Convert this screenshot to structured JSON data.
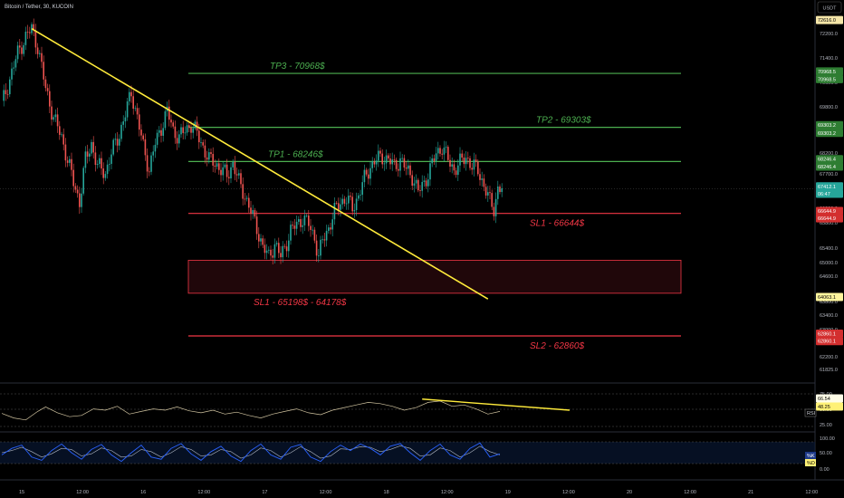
{
  "header": {
    "title": "Bitcoin / Tether, 30, KUCOIN",
    "currency_button": "USDT"
  },
  "colors": {
    "background": "#000000",
    "candle_up": "#26a69a",
    "candle_down": "#ef5350",
    "tp_line": "#4caf50",
    "sl_line": "#f23645",
    "trend_line": "#ffeb3b",
    "rsi_line": "#d1c4a0",
    "stoch_k": "#2962ff",
    "stoch_d": "#b0b7c4",
    "grid": "#3a3e4a"
  },
  "chart_data": {
    "type": "candlestick",
    "symbol": "Bitcoin / Tether",
    "interval": "30",
    "exchange": "KUCOIN",
    "x_ticks": [
      "15",
      "12:00",
      "16",
      "12:00",
      "17",
      "12:00",
      "18",
      "12:00",
      "19",
      "12:00",
      "20",
      "12:00",
      "21",
      "12:00"
    ],
    "y_ticks": [
      "72200.0",
      "71400.0",
      "70600.0",
      "69800.0",
      "69000.0",
      "68200.0",
      "67700.0",
      "66200.0",
      "65800.0",
      "65400.0",
      "65000.0",
      "64600.0",
      "63800.0",
      "63400.0",
      "63000.0",
      "62600.0",
      "62200.0",
      "61825.0"
    ],
    "ylim": [
      61825,
      72616
    ],
    "close_path": [
      [
        0,
        70000
      ],
      [
        4,
        70800
      ],
      [
        8,
        71600
      ],
      [
        12,
        72100
      ],
      [
        15,
        72350
      ],
      [
        18,
        71800
      ],
      [
        22,
        70500
      ],
      [
        26,
        69600
      ],
      [
        30,
        69000
      ],
      [
        33,
        68300
      ],
      [
        36,
        67600
      ],
      [
        39,
        67000
      ],
      [
        42,
        68300
      ],
      [
        45,
        68800
      ],
      [
        48,
        68100
      ],
      [
        52,
        67900
      ],
      [
        55,
        68500
      ],
      [
        59,
        69100
      ],
      [
        62,
        69700
      ],
      [
        65,
        70400
      ],
      [
        68,
        69600
      ],
      [
        71,
        68700
      ],
      [
        74,
        68000
      ],
      [
        77,
        68800
      ],
      [
        80,
        69300
      ],
      [
        83,
        69800
      ],
      [
        86,
        69200
      ],
      [
        89,
        69000
      ],
      [
        92,
        69200
      ],
      [
        95,
        69400
      ],
      [
        98,
        69100
      ],
      [
        101,
        68700
      ],
      [
        104,
        68300
      ],
      [
        107,
        68200
      ],
      [
        110,
        68000
      ],
      [
        113,
        67800
      ],
      [
        116,
        68200
      ],
      [
        119,
        67600
      ],
      [
        122,
        67200
      ],
      [
        125,
        66700
      ],
      [
        128,
        66200
      ],
      [
        131,
        65600
      ],
      [
        134,
        65300
      ],
      [
        137,
        65700
      ],
      [
        140,
        65300
      ],
      [
        142,
        65600
      ],
      [
        145,
        66100
      ],
      [
        148,
        66300
      ],
      [
        151,
        66500
      ],
      [
        154,
        66300
      ],
      [
        157,
        65900
      ],
      [
        159,
        65300
      ],
      [
        161,
        65800
      ],
      [
        164,
        66200
      ],
      [
        167,
        66700
      ],
      [
        170,
        67000
      ],
      [
        173,
        67100
      ],
      [
        176,
        66800
      ],
      [
        179,
        67200
      ],
      [
        182,
        67700
      ],
      [
        185,
        68100
      ],
      [
        188,
        68300
      ],
      [
        191,
        68400
      ],
      [
        194,
        68300
      ],
      [
        197,
        68100
      ],
      [
        200,
        68300
      ],
      [
        203,
        68000
      ],
      [
        206,
        67800
      ],
      [
        209,
        67300
      ],
      [
        212,
        67600
      ],
      [
        215,
        68000
      ],
      [
        218,
        68500
      ],
      [
        221,
        68700
      ],
      [
        224,
        68300
      ],
      [
        227,
        68000
      ],
      [
        230,
        68200
      ],
      [
        233,
        68400
      ],
      [
        236,
        68100
      ],
      [
        239,
        68000
      ],
      [
        242,
        67500
      ],
      [
        245,
        67000
      ],
      [
        247,
        66800
      ],
      [
        249,
        67400
      ],
      [
        251,
        67400
      ]
    ],
    "annotations": [
      {
        "label": "TP3 - 70968$",
        "price": 70968,
        "kind": "take-profit"
      },
      {
        "label": "TP2 - 69303$",
        "price": 69303,
        "kind": "take-profit"
      },
      {
        "label": "TP1 - 68246$",
        "price": 68246,
        "kind": "take-profit"
      },
      {
        "label": "SL1 - 66644$",
        "price": 66644,
        "kind": "stop-loss"
      },
      {
        "label": "SL1 - 65198$ - 64178$",
        "price_range": [
          64178,
          65198
        ],
        "kind": "stop-loss-zone"
      },
      {
        "label": "SL2 - 62860$",
        "price": 62860,
        "kind": "stop-loss"
      }
    ],
    "trendline": {
      "from": [
        15,
        72350
      ],
      "to": [
        244,
        64000
      ]
    },
    "price_tags": [
      {
        "text": "72616.0",
        "price": 72616,
        "style": "current-high"
      },
      {
        "text": "70968.5",
        "price": 71030,
        "style": "tp"
      },
      {
        "text": "70968.5",
        "price": 70790,
        "style": "tp"
      },
      {
        "text": "69303.2",
        "price": 69370,
        "style": "tp"
      },
      {
        "text": "69303.2",
        "price": 69130,
        "style": "tp"
      },
      {
        "text": "68246.4",
        "price": 68320,
        "style": "tp"
      },
      {
        "text": "68246.4",
        "price": 68090,
        "style": "tp"
      },
      {
        "text": "67412.1",
        "price": 67480,
        "style": "last"
      },
      {
        "text": "06:47",
        "price": 67250,
        "style": "last"
      },
      {
        "text": "66644.9",
        "price": 66720,
        "style": "sl"
      },
      {
        "text": "66644.9",
        "price": 66490,
        "style": "sl"
      },
      {
        "text": "64063.1",
        "price": 64063,
        "style": "marker"
      },
      {
        "text": "62860.1",
        "price": 62930,
        "style": "sl"
      },
      {
        "text": "62860.1",
        "price": 62700,
        "style": "sl"
      }
    ],
    "rsi": {
      "ticks": [
        "75.00",
        "50.00",
        "25.00"
      ],
      "label": "RSI",
      "tag_values": [
        "66.54",
        "48.25"
      ],
      "values": [
        [
          0,
          45
        ],
        [
          6,
          38
        ],
        [
          12,
          35
        ],
        [
          18,
          48
        ],
        [
          22,
          55
        ],
        [
          28,
          46
        ],
        [
          34,
          40
        ],
        [
          40,
          42
        ],
        [
          46,
          52
        ],
        [
          52,
          50
        ],
        [
          58,
          56
        ],
        [
          64,
          44
        ],
        [
          70,
          48
        ],
        [
          76,
          52
        ],
        [
          82,
          50
        ],
        [
          88,
          55
        ],
        [
          94,
          49
        ],
        [
          100,
          46
        ],
        [
          106,
          50
        ],
        [
          112,
          44
        ],
        [
          118,
          47
        ],
        [
          124,
          42
        ],
        [
          130,
          38
        ],
        [
          136,
          44
        ],
        [
          142,
          48
        ],
        [
          148,
          52
        ],
        [
          154,
          46
        ],
        [
          160,
          43
        ],
        [
          166,
          50
        ],
        [
          172,
          54
        ],
        [
          178,
          58
        ],
        [
          184,
          62
        ],
        [
          190,
          60
        ],
        [
          196,
          56
        ],
        [
          202,
          50
        ],
        [
          208,
          54
        ],
        [
          214,
          62
        ],
        [
          220,
          64
        ],
        [
          226,
          56
        ],
        [
          232,
          58
        ],
        [
          238,
          52
        ],
        [
          244,
          44
        ],
        [
          250,
          48
        ]
      ],
      "trendline": {
        "from": [
          211,
          67
        ],
        "to": [
          285,
          50
        ]
      }
    },
    "stoch": {
      "ticks": [
        "100.00",
        "50.00",
        "0.00"
      ],
      "labels": [
        "%K",
        "%D"
      ],
      "k": [
        [
          0,
          40
        ],
        [
          5,
          70
        ],
        [
          10,
          85
        ],
        [
          15,
          30
        ],
        [
          20,
          15
        ],
        [
          25,
          60
        ],
        [
          30,
          90
        ],
        [
          35,
          50
        ],
        [
          40,
          20
        ],
        [
          45,
          65
        ],
        [
          50,
          88
        ],
        [
          55,
          40
        ],
        [
          60,
          10
        ],
        [
          65,
          50
        ],
        [
          70,
          85
        ],
        [
          75,
          30
        ],
        [
          80,
          20
        ],
        [
          85,
          70
        ],
        [
          90,
          92
        ],
        [
          95,
          45
        ],
        [
          100,
          15
        ],
        [
          105,
          55
        ],
        [
          110,
          80
        ],
        [
          115,
          35
        ],
        [
          120,
          10
        ],
        [
          125,
          60
        ],
        [
          130,
          90
        ],
        [
          135,
          40
        ],
        [
          140,
          20
        ],
        [
          145,
          75
        ],
        [
          150,
          88
        ],
        [
          155,
          30
        ],
        [
          160,
          10
        ],
        [
          165,
          55
        ],
        [
          170,
          85
        ],
        [
          175,
          60
        ],
        [
          180,
          90
        ],
        [
          185,
          70
        ],
        [
          190,
          40
        ],
        [
          195,
          80
        ],
        [
          200,
          92
        ],
        [
          205,
          50
        ],
        [
          210,
          15
        ],
        [
          215,
          60
        ],
        [
          220,
          90
        ],
        [
          225,
          40
        ],
        [
          230,
          20
        ],
        [
          235,
          70
        ],
        [
          240,
          95
        ],
        [
          245,
          30
        ],
        [
          250,
          45
        ]
      ],
      "d": [
        [
          0,
          50
        ],
        [
          5,
          60
        ],
        [
          10,
          75
        ],
        [
          15,
          55
        ],
        [
          20,
          30
        ],
        [
          25,
          45
        ],
        [
          30,
          70
        ],
        [
          35,
          65
        ],
        [
          40,
          35
        ],
        [
          45,
          45
        ],
        [
          50,
          72
        ],
        [
          55,
          60
        ],
        [
          60,
          30
        ],
        [
          65,
          35
        ],
        [
          70,
          65
        ],
        [
          75,
          55
        ],
        [
          80,
          30
        ],
        [
          85,
          50
        ],
        [
          90,
          78
        ],
        [
          95,
          65
        ],
        [
          100,
          35
        ],
        [
          105,
          40
        ],
        [
          110,
          65
        ],
        [
          115,
          55
        ],
        [
          120,
          25
        ],
        [
          125,
          40
        ],
        [
          130,
          72
        ],
        [
          135,
          60
        ],
        [
          140,
          30
        ],
        [
          145,
          50
        ],
        [
          150,
          78
        ],
        [
          155,
          55
        ],
        [
          160,
          25
        ],
        [
          165,
          35
        ],
        [
          170,
          68
        ],
        [
          175,
          65
        ],
        [
          180,
          78
        ],
        [
          185,
          75
        ],
        [
          190,
          55
        ],
        [
          195,
          65
        ],
        [
          200,
          82
        ],
        [
          205,
          70
        ],
        [
          210,
          35
        ],
        [
          215,
          40
        ],
        [
          220,
          72
        ],
        [
          225,
          60
        ],
        [
          230,
          30
        ],
        [
          235,
          50
        ],
        [
          240,
          80
        ],
        [
          245,
          55
        ],
        [
          250,
          40
        ]
      ]
    }
  }
}
